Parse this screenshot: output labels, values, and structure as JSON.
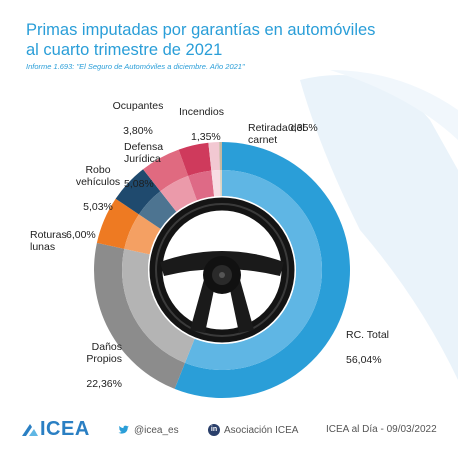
{
  "header": {
    "title_line1": "Primas imputadas por garantías en automóviles",
    "title_line2": "al cuarto trimestre de 2021",
    "subtitle": "Informe 1.693: \"El Seguro de Automóviles a diciembre. Año 2021\""
  },
  "colors": {
    "accent": "#2a9ed8",
    "bg_shape": "#eaf3fa"
  },
  "icons": {
    "center": "steering-wheel-icon",
    "logo": "icea-logo-icon",
    "twitter": "twitter-icon",
    "linkedin": "linkedin-icon"
  },
  "chart_data": {
    "type": "pie",
    "variant": "donut",
    "categories": [
      "RC. Total",
      "Daños Propios",
      "Roturas lunas",
      "Robo vehículos",
      "Defensa Jurídica",
      "Ocupantes",
      "Incendios",
      "Retirada del carnet"
    ],
    "values": [
      56.04,
      22.36,
      6.0,
      5.03,
      5.08,
      3.8,
      1.35,
      0.35
    ],
    "labels": [
      {
        "name": "RC. Total",
        "value": "56,04%"
      },
      {
        "name": "Daños\nPropios",
        "value": "22,36%"
      },
      {
        "name": "Roturas\nlunas",
        "value": "6,00%"
      },
      {
        "name": "Robo\nvehículos",
        "value": "5,03%"
      },
      {
        "name": "Defensa\nJurídica",
        "value": "5,08%"
      },
      {
        "name": "Ocupantes",
        "value": "3,80%"
      },
      {
        "name": "Incendios",
        "value": "1,35%"
      },
      {
        "name": "Retirada del\ncarnet",
        "value": "0,35%"
      }
    ],
    "colors_outer": [
      "#2a9ed8",
      "#8c8c8c",
      "#ee7a22",
      "#1f4a6e",
      "#e06a80",
      "#cf3a5c",
      "#f2c8d2",
      "#c4b7a0"
    ],
    "colors_inner": [
      "#5fb6e4",
      "#b4b4b4",
      "#f4a063",
      "#4d7491",
      "#eb9aaa",
      "#de6a86",
      "#f7dde3",
      "#dcd3c3"
    ],
    "start_angle_deg": 0,
    "direction": "clockwise"
  },
  "footer": {
    "brand": "ICEA",
    "twitter": "@icea_es",
    "linkedin": "Asociación ICEA",
    "date": "ICEA al Día - 09/03/2022"
  }
}
